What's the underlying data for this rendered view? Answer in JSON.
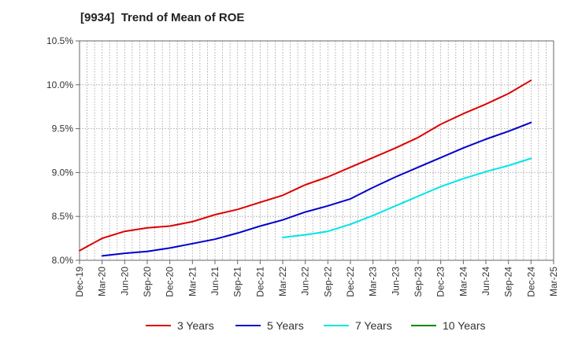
{
  "chart_data": {
    "type": "line",
    "title": "[9934]  Trend of Mean of ROE",
    "xlabel": "",
    "ylabel": "",
    "x": [
      "Dec-19",
      "Mar-20",
      "Jun-20",
      "Sep-20",
      "Dec-20",
      "Mar-21",
      "Jun-21",
      "Sep-21",
      "Dec-21",
      "Mar-22",
      "Jun-22",
      "Sep-22",
      "Dec-22",
      "Mar-23",
      "Jun-23",
      "Sep-23",
      "Dec-23",
      "Mar-24",
      "Jun-24",
      "Sep-24",
      "Dec-24",
      "Mar-25"
    ],
    "ylim": [
      8.0,
      10.5
    ],
    "yticks": [
      8.0,
      8.5,
      9.0,
      9.5,
      10.0,
      10.5
    ],
    "ytick_labels": [
      "8.0%",
      "8.5%",
      "9.0%",
      "9.5%",
      "10.0%",
      "10.5%"
    ],
    "grid": true,
    "legend_position": "bottom",
    "series": [
      {
        "name": "3 Years",
        "color": "#dd0000",
        "values": [
          8.11,
          8.25,
          8.33,
          8.37,
          8.39,
          8.44,
          8.52,
          8.58,
          8.66,
          8.74,
          8.86,
          8.95,
          9.06,
          9.17,
          9.28,
          9.4,
          9.55,
          9.67,
          9.78,
          9.9,
          10.05,
          null
        ]
      },
      {
        "name": "5 Years",
        "color": "#0000cc",
        "values": [
          null,
          8.05,
          8.08,
          8.1,
          8.14,
          8.19,
          8.24,
          8.31,
          8.39,
          8.46,
          8.55,
          8.62,
          8.7,
          8.83,
          8.95,
          9.06,
          9.17,
          9.28,
          9.38,
          9.47,
          9.57,
          null
        ]
      },
      {
        "name": "7 Years",
        "color": "#00e5e5",
        "values": [
          null,
          null,
          null,
          null,
          null,
          null,
          null,
          null,
          null,
          8.26,
          8.29,
          8.33,
          8.41,
          8.51,
          8.62,
          8.73,
          8.84,
          8.93,
          9.01,
          9.08,
          9.16,
          null
        ]
      },
      {
        "name": "10 Years",
        "color": "#008800",
        "values": [
          null,
          null,
          null,
          null,
          null,
          null,
          null,
          null,
          null,
          null,
          null,
          null,
          null,
          null,
          null,
          null,
          null,
          null,
          null,
          null,
          null,
          null
        ]
      }
    ]
  }
}
